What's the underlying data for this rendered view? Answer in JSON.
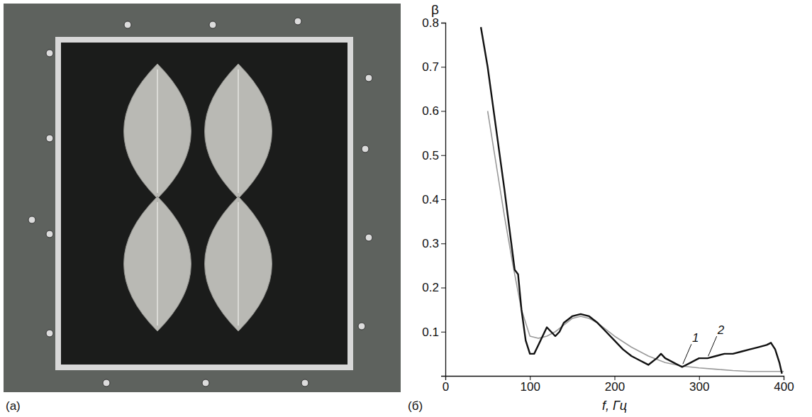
{
  "panel_labels": [
    "(а)",
    "(б)"
  ],
  "chart_data": {
    "type": "line",
    "y_label": "β",
    "x_label": "f, Гц",
    "xlim": [
      0,
      400
    ],
    "xticks": [
      0,
      100,
      200,
      300,
      400
    ],
    "ylim": [
      0,
      0.8
    ],
    "yticks": [
      0.1,
      0.2,
      0.3,
      0.4,
      0.5,
      0.6,
      0.7,
      0.8
    ],
    "grid": false,
    "series": [
      {
        "name": "1",
        "color": "#9a9a9a",
        "line_style": "solid",
        "x": [
          50,
          60,
          70,
          80,
          90,
          100,
          110,
          120,
          130,
          140,
          150,
          160,
          170,
          180,
          190,
          200,
          220,
          240,
          260,
          280,
          300,
          320,
          340,
          360,
          380,
          400
        ],
        "values": [
          0.6,
          0.48,
          0.36,
          0.25,
          0.15,
          0.09,
          0.085,
          0.09,
          0.1,
          0.115,
          0.13,
          0.135,
          0.13,
          0.12,
          0.105,
          0.09,
          0.065,
          0.045,
          0.03,
          0.022,
          0.018,
          0.015,
          0.012,
          0.01,
          0.01,
          0.01
        ]
      },
      {
        "name": "2",
        "color": "#111111",
        "line_style": "solid",
        "x": [
          42,
          50,
          60,
          70,
          78,
          82,
          86,
          90,
          95,
          100,
          105,
          110,
          115,
          120,
          125,
          130,
          135,
          140,
          150,
          160,
          170,
          180,
          190,
          200,
          210,
          220,
          230,
          240,
          250,
          255,
          260,
          270,
          280,
          290,
          300,
          310,
          320,
          330,
          340,
          350,
          360,
          370,
          380,
          385,
          390,
          395,
          398
        ],
        "values": [
          0.79,
          0.7,
          0.56,
          0.42,
          0.3,
          0.24,
          0.23,
          0.15,
          0.08,
          0.05,
          0.05,
          0.07,
          0.09,
          0.11,
          0.1,
          0.09,
          0.1,
          0.12,
          0.135,
          0.14,
          0.135,
          0.12,
          0.1,
          0.08,
          0.06,
          0.045,
          0.035,
          0.025,
          0.04,
          0.05,
          0.04,
          0.03,
          0.02,
          0.03,
          0.04,
          0.04,
          0.045,
          0.05,
          0.05,
          0.055,
          0.06,
          0.065,
          0.07,
          0.075,
          0.06,
          0.03,
          0.005
        ]
      }
    ]
  }
}
